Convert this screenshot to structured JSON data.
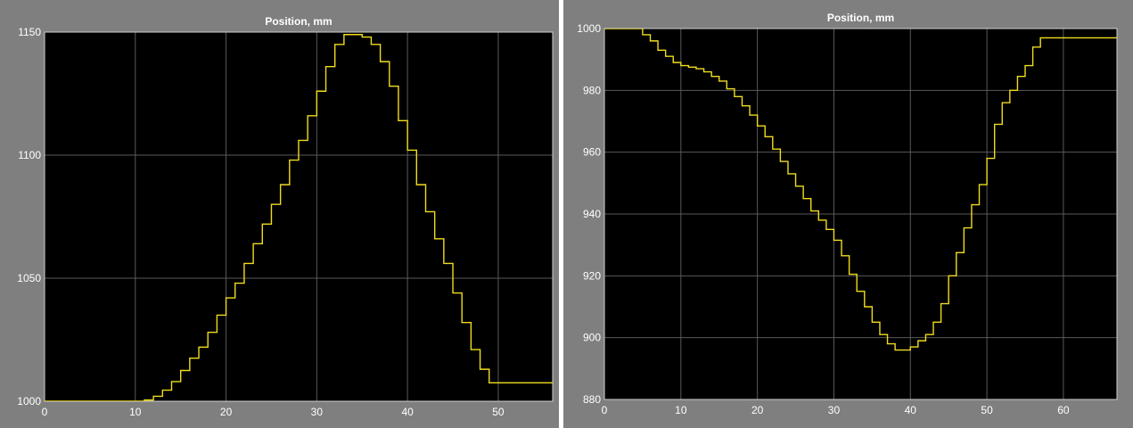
{
  "colors": {
    "panel_bg": "#7f7f7f",
    "plot_bg": "#000000",
    "grid": "#5a5a5a",
    "axis_frame": "#cfcfcf",
    "line": "#f0dc1e",
    "text": "#ffffff"
  },
  "chart_data": [
    {
      "type": "line",
      "step": true,
      "title": "Position, mm",
      "xlabel": "",
      "ylabel": "",
      "xlim": [
        0,
        56
      ],
      "ylim": [
        1000,
        1150
      ],
      "xticks": [
        0,
        10,
        20,
        30,
        40,
        50
      ],
      "yticks": [
        1000,
        1050,
        1100,
        1150
      ],
      "grid": true,
      "series": [
        {
          "x": [
            0,
            11,
            12,
            13,
            14,
            15,
            16,
            17,
            18,
            19,
            20,
            21,
            22,
            23,
            24,
            25,
            26,
            27,
            28,
            29,
            30,
            31,
            32,
            33,
            34,
            35,
            36,
            37,
            38,
            39,
            40,
            41,
            42,
            43,
            44,
            45,
            46,
            47,
            48,
            49,
            56
          ],
          "y": [
            1000,
            1000.5,
            1002,
            1004.5,
            1008,
            1012.5,
            1017.5,
            1022,
            1028,
            1035,
            1042,
            1048,
            1056,
            1064,
            1072,
            1080,
            1088,
            1098,
            1106,
            1116,
            1126,
            1136,
            1145,
            1149,
            1149,
            1148,
            1145,
            1138,
            1128,
            1114,
            1102,
            1088,
            1077,
            1066,
            1056,
            1044,
            1032,
            1021,
            1013,
            1007.5,
            1007.5
          ]
        }
      ]
    },
    {
      "type": "line",
      "step": true,
      "title": "Position, mm",
      "xlabel": "",
      "ylabel": "",
      "xlim": [
        0,
        67
      ],
      "ylim": [
        880,
        1000
      ],
      "xticks": [
        0,
        10,
        20,
        30,
        40,
        50,
        60
      ],
      "yticks": [
        880,
        900,
        920,
        940,
        960,
        980,
        1000
      ],
      "grid": true,
      "series": [
        {
          "x": [
            0,
            5,
            6,
            7,
            8,
            9,
            10,
            11,
            12,
            13,
            14,
            15,
            16,
            17,
            18,
            19,
            20,
            21,
            22,
            23,
            24,
            25,
            26,
            27,
            28,
            29,
            30,
            31,
            32,
            33,
            34,
            35,
            36,
            37,
            38,
            39,
            40,
            41,
            42,
            43,
            44,
            45,
            46,
            47,
            48,
            49,
            50,
            51,
            52,
            53,
            54,
            55,
            56,
            57,
            67
          ],
          "y": [
            1000,
            998,
            996,
            993,
            991,
            989,
            988,
            987.5,
            987,
            986,
            984.5,
            983,
            980.5,
            978,
            975,
            972,
            968.5,
            965,
            961,
            957,
            953,
            949,
            945,
            941,
            938,
            935,
            931.5,
            926.5,
            920.5,
            915,
            910,
            905,
            901,
            898,
            896,
            896,
            897,
            899,
            901,
            905,
            911,
            920,
            927.5,
            935.5,
            943,
            949.5,
            958,
            969,
            976,
            980,
            984.5,
            988,
            994,
            997,
            997
          ]
        }
      ]
    }
  ]
}
